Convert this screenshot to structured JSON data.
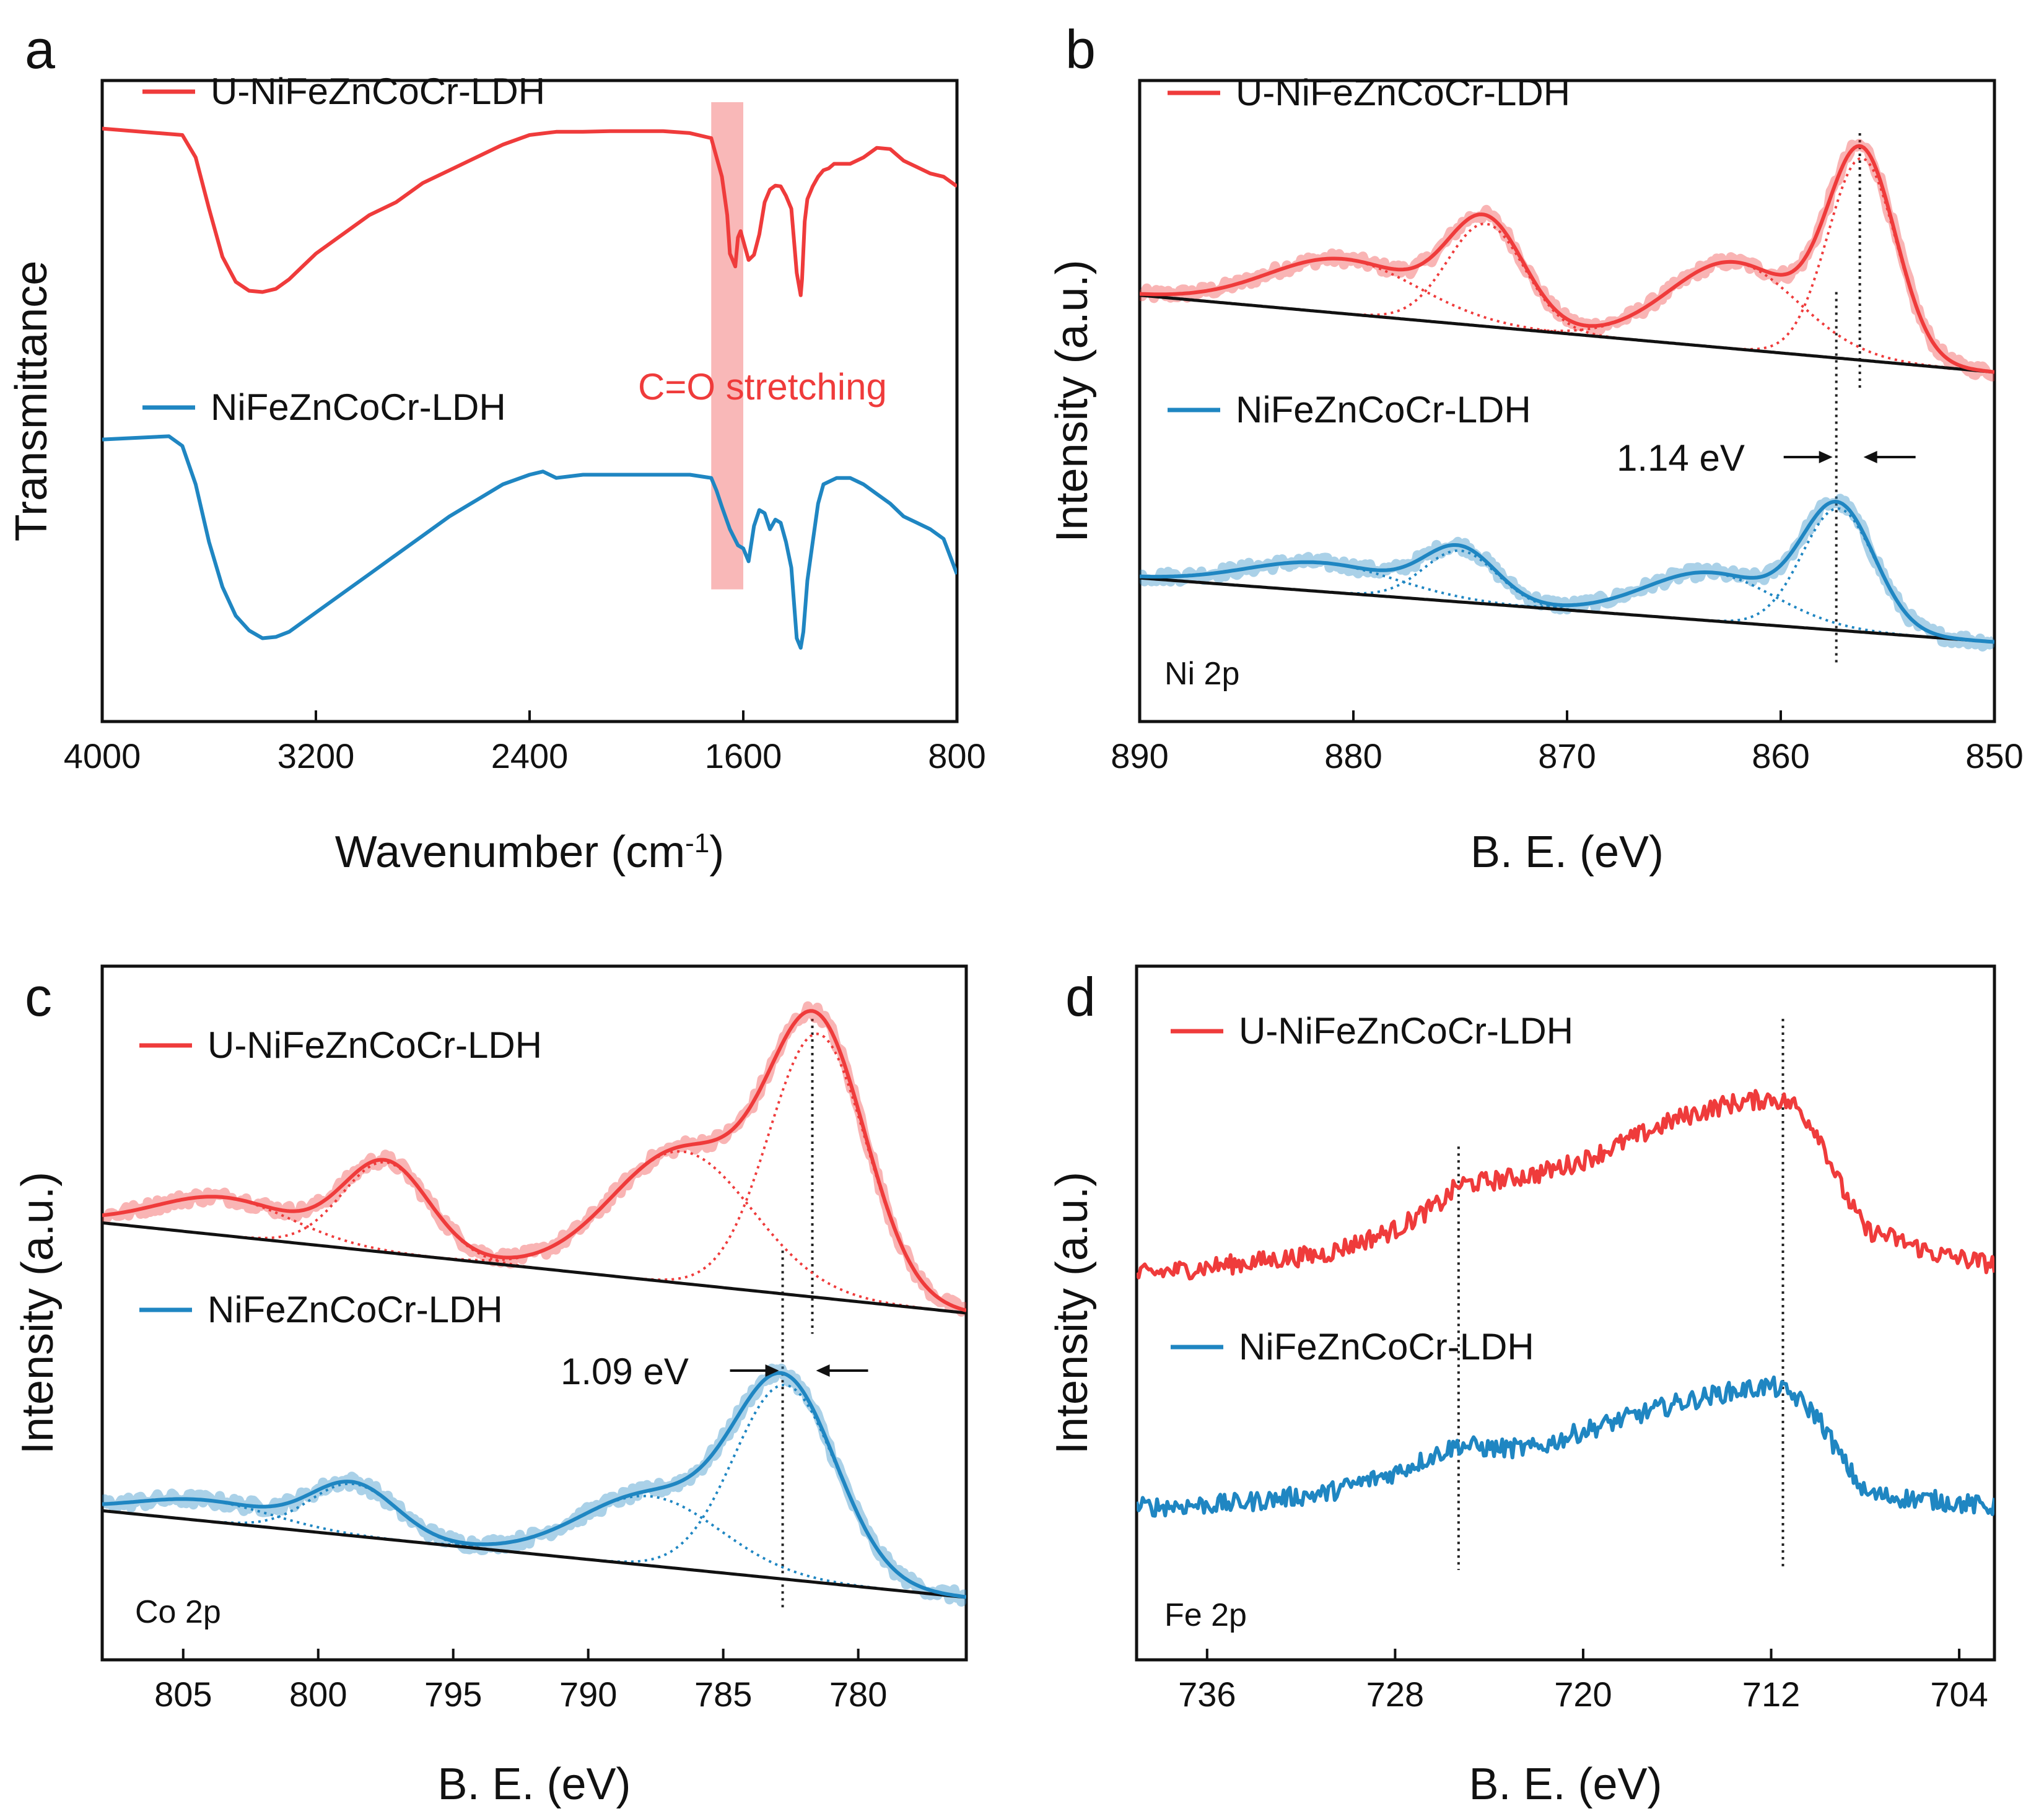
{
  "chart_data": [
    {
      "panel": "a",
      "type": "line",
      "xlabel": "Wavenumber (cm",
      "xlabel_sup": "-1",
      "xlabel_close": ")",
      "ylabel": "Transmittance",
      "xlim": [
        4000,
        800
      ],
      "ylim": [
        0,
        1
      ],
      "xticks": [
        "4000",
        "3200",
        "2400",
        "1600",
        "800"
      ],
      "annotation": "C=O stretching",
      "band": [
        1720,
        1600
      ],
      "series": [
        {
          "name": "U-NiFeZnCoCr-LDH",
          "color": "#ef3b3b",
          "x": [
            4000,
            3700,
            3650,
            3600,
            3550,
            3500,
            3450,
            3400,
            3350,
            3300,
            3250,
            3200,
            3100,
            3000,
            2900,
            2800,
            2700,
            2600,
            2500,
            2400,
            2300,
            2200,
            2100,
            2000,
            1900,
            1800,
            1720,
            1700,
            1680,
            1660,
            1650,
            1640,
            1630,
            1620,
            1610,
            1600,
            1580,
            1560,
            1540,
            1520,
            1500,
            1480,
            1460,
            1440,
            1420,
            1400,
            1385,
            1380,
            1370,
            1360,
            1340,
            1320,
            1300,
            1280,
            1260,
            1240,
            1200,
            1150,
            1100,
            1050,
            1000,
            950,
            900,
            850,
            800
          ],
          "y": [
            0.925,
            0.915,
            0.88,
            0.8,
            0.725,
            0.686,
            0.672,
            0.67,
            0.675,
            0.69,
            0.71,
            0.73,
            0.76,
            0.79,
            0.81,
            0.84,
            0.86,
            0.88,
            0.9,
            0.915,
            0.92,
            0.92,
            0.921,
            0.921,
            0.921,
            0.918,
            0.91,
            0.88,
            0.85,
            0.79,
            0.73,
            0.72,
            0.71,
            0.755,
            0.765,
            0.75,
            0.72,
            0.728,
            0.76,
            0.81,
            0.83,
            0.836,
            0.835,
            0.82,
            0.8,
            0.7,
            0.665,
            0.69,
            0.78,
            0.815,
            0.835,
            0.85,
            0.86,
            0.863,
            0.87,
            0.87,
            0.87,
            0.88,
            0.895,
            0.893,
            0.875,
            0.865,
            0.855,
            0.85,
            0.835
          ]
        },
        {
          "name": "NiFeZnCoCr-LDH",
          "color": "#1f86c2",
          "x": [
            4000,
            3750,
            3700,
            3650,
            3600,
            3550,
            3500,
            3450,
            3400,
            3350,
            3300,
            3250,
            3200,
            3100,
            3000,
            2900,
            2800,
            2700,
            2600,
            2500,
            2400,
            2350,
            2300,
            2200,
            2100,
            2000,
            1900,
            1800,
            1720,
            1700,
            1680,
            1650,
            1620,
            1600,
            1580,
            1560,
            1540,
            1520,
            1500,
            1480,
            1460,
            1440,
            1420,
            1400,
            1385,
            1375,
            1360,
            1340,
            1320,
            1300,
            1250,
            1200,
            1150,
            1100,
            1050,
            1000,
            950,
            900,
            850,
            800
          ],
          "y": [
            0.44,
            0.445,
            0.43,
            0.37,
            0.28,
            0.21,
            0.165,
            0.142,
            0.13,
            0.132,
            0.14,
            0.155,
            0.17,
            0.2,
            0.23,
            0.26,
            0.29,
            0.32,
            0.345,
            0.37,
            0.385,
            0.39,
            0.38,
            0.385,
            0.385,
            0.385,
            0.385,
            0.385,
            0.38,
            0.36,
            0.335,
            0.3,
            0.275,
            0.27,
            0.25,
            0.305,
            0.33,
            0.325,
            0.3,
            0.315,
            0.31,
            0.28,
            0.24,
            0.13,
            0.115,
            0.14,
            0.22,
            0.28,
            0.34,
            0.37,
            0.38,
            0.38,
            0.37,
            0.355,
            0.34,
            0.32,
            0.31,
            0.3,
            0.285,
            0.23
          ]
        }
      ]
    },
    {
      "panel": "b",
      "type": "line",
      "xlabel": "B. E. (eV)",
      "ylabel": "Intensity (a.u.)",
      "xlim": [
        890,
        850
      ],
      "ylim": [
        0,
        1
      ],
      "xticks": [
        "890",
        "880",
        "870",
        "860",
        "850"
      ],
      "annotation": "Ni 2p",
      "shift_label": "1.14 eV",
      "vlines": [
        856.3,
        857.4
      ],
      "series": [
        {
          "name": "U-NiFeZnCoCr-LDH",
          "color": "#ef3b3b",
          "baseline": [
            0.665,
            0.545
          ],
          "peaks": [
            {
              "center": 856.2,
              "height": 0.315,
              "width": 1.6
            },
            {
              "center": 862.2,
              "height": 0.135,
              "width": 3.0
            },
            {
              "center": 873.8,
              "height": 0.16,
              "width": 1.8
            },
            {
              "center": 880.5,
              "height": 0.085,
              "width": 3.5
            }
          ]
        },
        {
          "name": "NiFeZnCoCr-LDH",
          "color": "#1f86c2",
          "baseline": [
            0.224,
            0.124
          ],
          "peaks": [
            {
              "center": 857.3,
              "height": 0.19,
              "width": 1.7
            },
            {
              "center": 863.3,
              "height": 0.075,
              "width": 3.0
            },
            {
              "center": 875.0,
              "height": 0.08,
              "width": 1.7
            },
            {
              "center": 881.5,
              "height": 0.045,
              "width": 3.5
            }
          ]
        }
      ]
    },
    {
      "panel": "c",
      "type": "line",
      "xlabel": "B. E. (eV)",
      "ylabel": "Intensity (a.u.)",
      "xlim": [
        808,
        776
      ],
      "ylim": [
        0,
        1
      ],
      "xticks": [
        "805",
        "800",
        "795",
        "790",
        "785",
        "780"
      ],
      "annotation": "Co 2p",
      "shift_label": "1.09 eV",
      "vlines": [
        781.7,
        782.8
      ],
      "series": [
        {
          "name": "U-NiFeZnCoCr-LDH",
          "color": "#ef3b3b",
          "baseline": [
            0.63,
            0.5
          ],
          "peaks": [
            {
              "center": 781.5,
              "height": 0.38,
              "width": 1.8
            },
            {
              "center": 786.5,
              "height": 0.19,
              "width": 2.6
            },
            {
              "center": 797.5,
              "height": 0.13,
              "width": 1.6
            },
            {
              "center": 803.5,
              "height": 0.055,
              "width": 2.5
            }
          ]
        },
        {
          "name": "NiFeZnCoCr-LDH",
          "color": "#1f86c2",
          "baseline": [
            0.215,
            0.09
          ],
          "peaks": [
            {
              "center": 782.7,
              "height": 0.28,
              "width": 1.9
            },
            {
              "center": 787.7,
              "height": 0.1,
              "width": 2.6
            },
            {
              "center": 798.7,
              "height": 0.075,
              "width": 1.6
            },
            {
              "center": 804.2,
              "height": 0.03,
              "width": 2.5
            }
          ]
        }
      ]
    },
    {
      "panel": "d",
      "type": "line",
      "xlabel": "B. E. (eV)",
      "ylabel": "Intensity (a.u.)",
      "xlim": [
        739,
        702.5
      ],
      "ylim": [
        0,
        1
      ],
      "xticks": [
        "736",
        "728",
        "720",
        "712",
        "704"
      ],
      "annotation": "Fe 2p",
      "vlines": [
        725.3,
        711.5
      ],
      "series": [
        {
          "name": "U-NiFeZnCoCr-LDH",
          "color": "#ef3b3b",
          "x": [
            739,
            735,
            731,
            728,
            726,
            725.3,
            724,
            722,
            720,
            718,
            716,
            714,
            712,
            711,
            710,
            709,
            708,
            707,
            705,
            702.5
          ],
          "y": [
            0.555,
            0.57,
            0.585,
            0.62,
            0.66,
            0.685,
            0.69,
            0.7,
            0.72,
            0.75,
            0.78,
            0.8,
            0.81,
            0.8,
            0.76,
            0.68,
            0.62,
            0.61,
            0.585,
            0.57
          ]
        },
        {
          "name": "NiFeZnCoCr-LDH",
          "color": "#1f86c2",
          "x": [
            739,
            735,
            731,
            728,
            726,
            725.3,
            724,
            722,
            720,
            718,
            716,
            714,
            712,
            711,
            710,
            709,
            708,
            707,
            705,
            702.5
          ],
          "y": [
            0.22,
            0.225,
            0.24,
            0.27,
            0.3,
            0.31,
            0.305,
            0.305,
            0.33,
            0.35,
            0.37,
            0.385,
            0.395,
            0.38,
            0.35,
            0.29,
            0.24,
            0.235,
            0.23,
            0.22
          ]
        }
      ]
    }
  ]
}
